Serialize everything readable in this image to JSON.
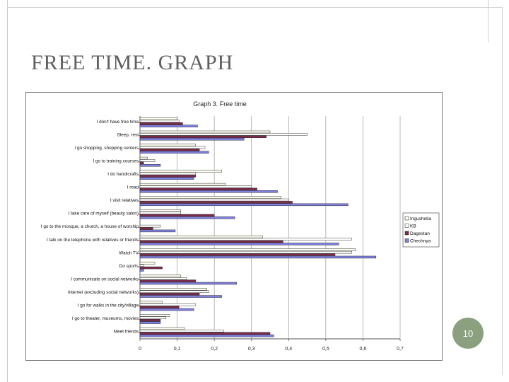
{
  "slide": {
    "title": "FREE TIME. GRAPH",
    "page_number": "10"
  },
  "chart_data": {
    "type": "bar",
    "orientation": "horizontal",
    "title": "Graph 3. Free time",
    "xlabel": "",
    "ylabel": "",
    "xlim": [
      0,
      0.7
    ],
    "xticks": [
      "0",
      "0,1",
      "0,2",
      "0,3",
      "0,4",
      "0,5",
      "0,6",
      "0,7"
    ],
    "grid": true,
    "legend_position": "right",
    "categories": [
      "I don't have free time",
      "Sleep, rest",
      "I go shopping, shopping centers",
      "I go to training courses",
      "I do handicrafts",
      "I read",
      "I visit relatives",
      "I take care of myself (beauty salon)",
      "I go to the mosque, a church, a house of worship",
      "I  talk on the telephone with relatives or friends",
      "Watch TV",
      "Do sports",
      "I  communicate on social networks",
      "Internet (excluding social networks)",
      "I  go for walks in the city/village",
      "I  go to theater, museums, movies",
      "Meet friends"
    ],
    "series": [
      {
        "name": "Ingushetia",
        "color": "#fbfbee",
        "values": [
          0.1,
          0.35,
          0.15,
          0.02,
          0.22,
          0.23,
          0.38,
          0.11,
          0.0,
          0.33,
          0.58,
          0.04,
          0.11,
          0.18,
          0.06,
          0.08,
          0.12
        ]
      },
      {
        "name": "KB",
        "color": "#ffffff",
        "values": [
          0.105,
          0.45,
          0.175,
          0.04,
          0.15,
          0.3,
          0.4,
          0.11,
          0.055,
          0.57,
          0.57,
          0.01,
          0.125,
          0.185,
          0.15,
          0.07,
          0.225
        ]
      },
      {
        "name": "Dagestan",
        "color": "#7b2b4b",
        "values": [
          0.115,
          0.34,
          0.16,
          0.01,
          0.15,
          0.315,
          0.41,
          0.2,
          0.035,
          0.385,
          0.525,
          0.06,
          0.15,
          0.16,
          0.105,
          0.055,
          0.35
        ]
      },
      {
        "name": "Chechnya",
        "color": "#8080e0",
        "values": [
          0.155,
          0.28,
          0.185,
          0.055,
          0.145,
          0.37,
          0.56,
          0.255,
          0.095,
          0.535,
          0.635,
          0.01,
          0.26,
          0.22,
          0.145,
          0.055,
          0.36
        ]
      }
    ]
  }
}
